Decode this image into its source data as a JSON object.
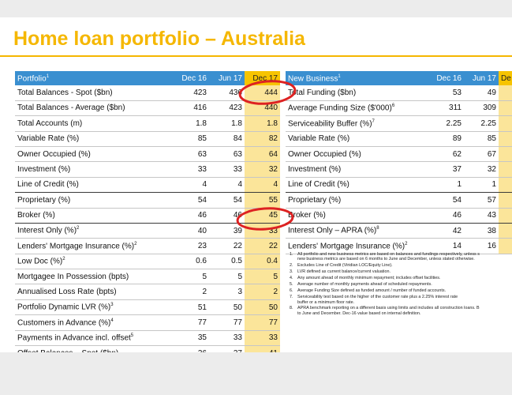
{
  "title": "Home loan portfolio – Australia",
  "portfolio": {
    "headers": [
      "Portfolio",
      "Dec 16",
      "Jun 17",
      "Dec 17"
    ],
    "header_sup": "1",
    "rows": [
      {
        "label": "Total Balances - Spot ($bn)",
        "sup": "",
        "v": [
          "423",
          "436",
          "444"
        ],
        "sep": false
      },
      {
        "label": "Total Balances - Average ($bn)",
        "sup": "",
        "v": [
          "416",
          "423",
          "440"
        ],
        "sep": false
      },
      {
        "label": "Total Accounts (m)",
        "sup": "",
        "v": [
          "1.8",
          "1.8",
          "1.8"
        ],
        "sep": false
      },
      {
        "label": "Variable Rate (%)",
        "sup": "",
        "v": [
          "85",
          "84",
          "82"
        ],
        "sep": false
      },
      {
        "label": "Owner Occupied (%)",
        "sup": "",
        "v": [
          "63",
          "63",
          "64"
        ],
        "sep": false
      },
      {
        "label": "Investment (%)",
        "sup": "",
        "v": [
          "33",
          "33",
          "32"
        ],
        "sep": false
      },
      {
        "label": "Line of Credit (%)",
        "sup": "",
        "v": [
          "4",
          "4",
          "4"
        ],
        "sep": true
      },
      {
        "label": "Proprietary (%)",
        "sup": "",
        "v": [
          "54",
          "54",
          "55"
        ],
        "sep": false
      },
      {
        "label": "Broker (%)",
        "sup": "",
        "v": [
          "46",
          "46",
          "45"
        ],
        "sep": true
      },
      {
        "label": "Interest Only (%)",
        "sup": "2",
        "v": [
          "40",
          "39",
          "33"
        ],
        "sep": false
      },
      {
        "label": "Lenders' Mortgage Insurance (%)",
        "sup": "2",
        "v": [
          "23",
          "22",
          "22"
        ],
        "sep": false
      },
      {
        "label": "Low Doc (%)",
        "sup": "2",
        "v": [
          "0.6",
          "0.5",
          "0.4"
        ],
        "sep": false
      },
      {
        "label": "Mortgagee In Possession (bpts)",
        "sup": "",
        "v": [
          "5",
          "5",
          "5"
        ],
        "sep": false
      },
      {
        "label": "Annualised Loss Rate (bpts)",
        "sup": "",
        "v": [
          "2",
          "3",
          "2"
        ],
        "sep": false
      },
      {
        "label": "Portfolio Dynamic LVR (%)",
        "sup": "3",
        "v": [
          "51",
          "50",
          "50"
        ],
        "sep": false
      },
      {
        "label": "Customers in Advance (%)",
        "sup": "4",
        "v": [
          "77",
          "77",
          "77"
        ],
        "sep": false
      },
      {
        "label": "Payments in Advance incl. offset",
        "sup": "5",
        "v": [
          "35",
          "33",
          "33"
        ],
        "sep": false
      },
      {
        "label": "Offset Balances – Spot ($bn)",
        "sup": "",
        "v": [
          "36",
          "37",
          "41"
        ],
        "sep": false
      }
    ]
  },
  "new_business": {
    "headers": [
      "New Business",
      "Dec 16",
      "Jun 17",
      "De"
    ],
    "header_sup": "1",
    "rows": [
      {
        "label": "Total Funding ($bn)",
        "sup": "",
        "v": [
          "53",
          "49",
          ""
        ],
        "sep": false
      },
      {
        "label": "Average Funding Size ($'000)",
        "sup": "6",
        "v": [
          "311",
          "309",
          ""
        ],
        "sep": false
      },
      {
        "label": "Serviceability Buffer (%)",
        "sup": "7",
        "v": [
          "2.25",
          "2.25",
          ""
        ],
        "sep": false
      },
      {
        "label": "Variable Rate (%)",
        "sup": "",
        "v": [
          "89",
          "85",
          ""
        ],
        "sep": false
      },
      {
        "label": "Owner Occupied (%)",
        "sup": "",
        "v": [
          "62",
          "67",
          ""
        ],
        "sep": false
      },
      {
        "label": "Investment (%)",
        "sup": "",
        "v": [
          "37",
          "32",
          ""
        ],
        "sep": false
      },
      {
        "label": "Line of Credit (%)",
        "sup": "",
        "v": [
          "1",
          "1",
          ""
        ],
        "sep": true
      },
      {
        "label": "Proprietary (%)",
        "sup": "",
        "v": [
          "54",
          "57",
          ""
        ],
        "sep": false
      },
      {
        "label": "Broker (%)",
        "sup": "",
        "v": [
          "46",
          "43",
          ""
        ],
        "sep": true
      },
      {
        "label": "Interest Only – APRA (%)",
        "sup": "8",
        "v": [
          "42",
          "38",
          ""
        ],
        "sep": false
      },
      {
        "label": "Lenders' Mortgage Insurance (%)",
        "sup": "2",
        "v": [
          "14",
          "16",
          ""
        ],
        "sep": false
      }
    ]
  },
  "footnotes": [
    {
      "n": "1.",
      "lines": [
        "All portfolio and new business metrics are based on balances and fundings respectively, unless s",
        "new business metrics are based on 6 months to June and December, unless stated otherwise."
      ]
    },
    {
      "n": "2.",
      "lines": [
        "Excludes Line of Credit (Viridian LOC/Equity Line)."
      ]
    },
    {
      "n": "3.",
      "lines": [
        "LVR defined as current balance/current valuation."
      ]
    },
    {
      "n": "4.",
      "lines": [
        "Any amount ahead of monthly minimum repayment; includes offset facilities."
      ]
    },
    {
      "n": "5.",
      "lines": [
        "Average number of monthly payments ahead of scheduled repayments."
      ]
    },
    {
      "n": "6.",
      "lines": [
        "Average Funding Size defined as funded amount / number of funded accounts."
      ]
    },
    {
      "n": "7.",
      "lines": [
        "Serviceability test based on the higher of the customer rate plus a 2.25% interest rate",
        "buffer or a minimum floor rate."
      ]
    },
    {
      "n": "8.",
      "lines": [
        "APRA benchmark reporting on a different basis using limits and includes all construction loans. B",
        "to June and December. Dec-16 value based on internal definition."
      ]
    }
  ],
  "colors": {
    "title": "#f5b700",
    "header": "#3a8fd0",
    "highlight_header": "#f7c400",
    "highlight_cell": "#fbe59a",
    "annotation": "#dd2222"
  }
}
